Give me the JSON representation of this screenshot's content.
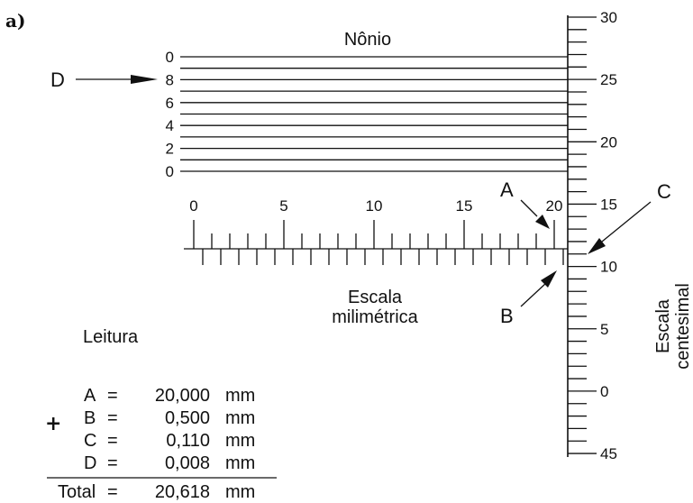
{
  "figure_label": "a)",
  "vernier": {
    "title": "Nônio",
    "labels": [
      "0",
      "8",
      "6",
      "4",
      "2",
      "0"
    ]
  },
  "main_scale": {
    "title_line1": "Escala",
    "title_line2": "milimétrica",
    "labels": [
      "0",
      "5",
      "10",
      "15",
      "20"
    ]
  },
  "thimble": {
    "title_line1": "Escala",
    "title_line2": "centesimal",
    "labels": [
      "30",
      "25",
      "20",
      "15",
      "10",
      "5",
      "0",
      "45"
    ]
  },
  "pointers": {
    "A": "A",
    "B": "B",
    "C": "C",
    "D": "D"
  },
  "reading": {
    "title": "Leitura",
    "plus": "+",
    "rows": [
      {
        "label": "A",
        "eq": "=",
        "value": "20,000",
        "unit": "mm"
      },
      {
        "label": "B",
        "eq": "=",
        "value": "0,500",
        "unit": "mm"
      },
      {
        "label": "C",
        "eq": "=",
        "value": "0,110",
        "unit": "mm"
      },
      {
        "label": "D",
        "eq": "=",
        "value": "0,008",
        "unit": "mm"
      }
    ],
    "total": {
      "label": "Total",
      "eq": "=",
      "value": "20,618",
      "unit": "mm"
    }
  }
}
